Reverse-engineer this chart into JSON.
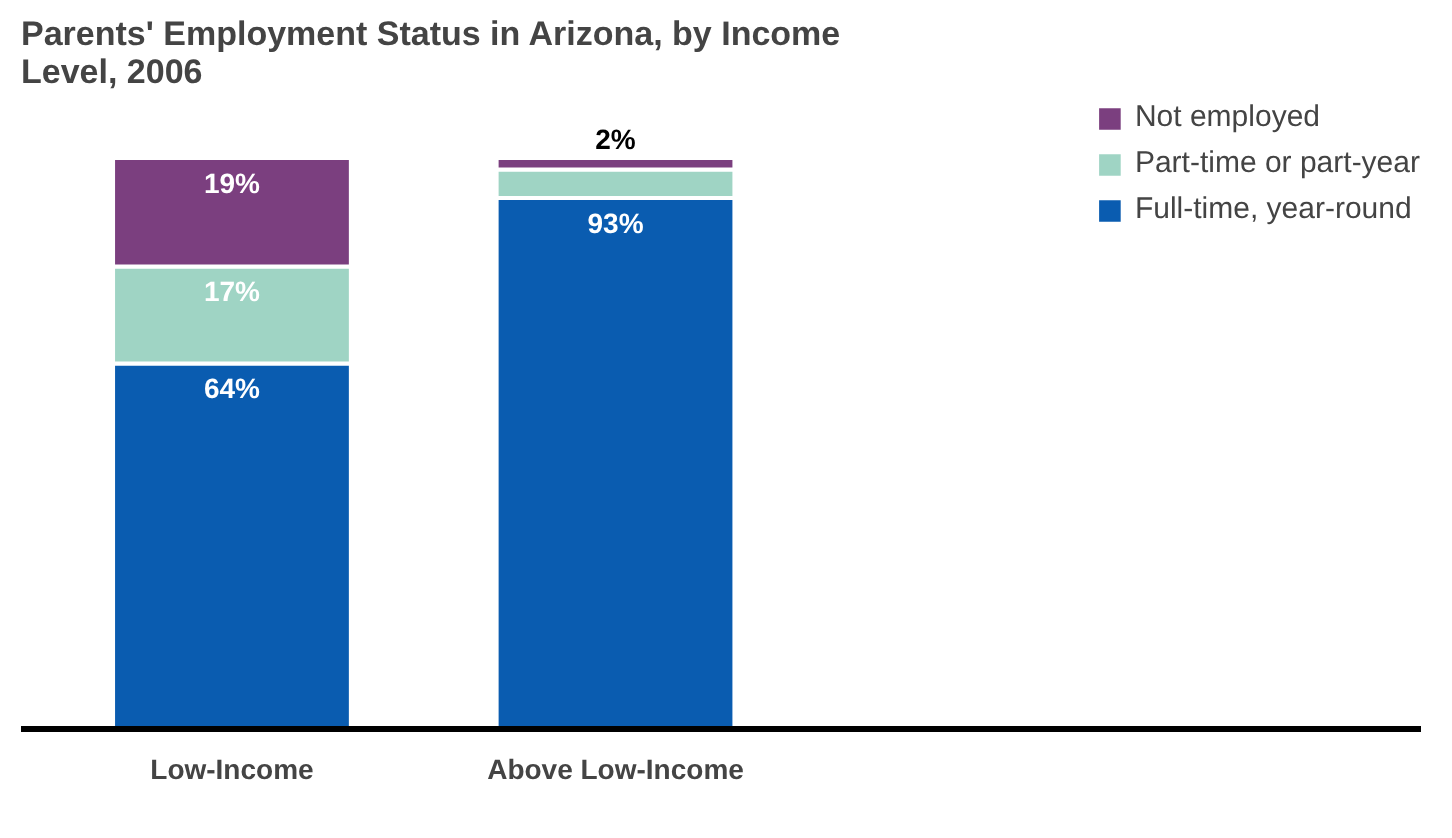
{
  "chart_data": {
    "type": "bar",
    "stacked": true,
    "title": "Parents' Employment Status in Arizona, by Income\nLevel, 2006",
    "categories": [
      "Low-Income",
      "Above Low-Income"
    ],
    "legend": "top right",
    "series": [
      {
        "name": "Full-time, year-round",
        "color": "#0a5cb0",
        "values": [
          64,
          93
        ],
        "value_labels": [
          "64%",
          "93%"
        ]
      },
      {
        "name": "Part-time or part-year",
        "color": "#9fd4c4",
        "values": [
          17,
          5
        ],
        "value_labels": [
          "17%",
          null
        ]
      },
      {
        "name": "Not employed",
        "color": "#7b3f7f",
        "values": [
          19,
          2
        ],
        "value_labels": [
          "19%",
          "2%"
        ]
      }
    ]
  }
}
